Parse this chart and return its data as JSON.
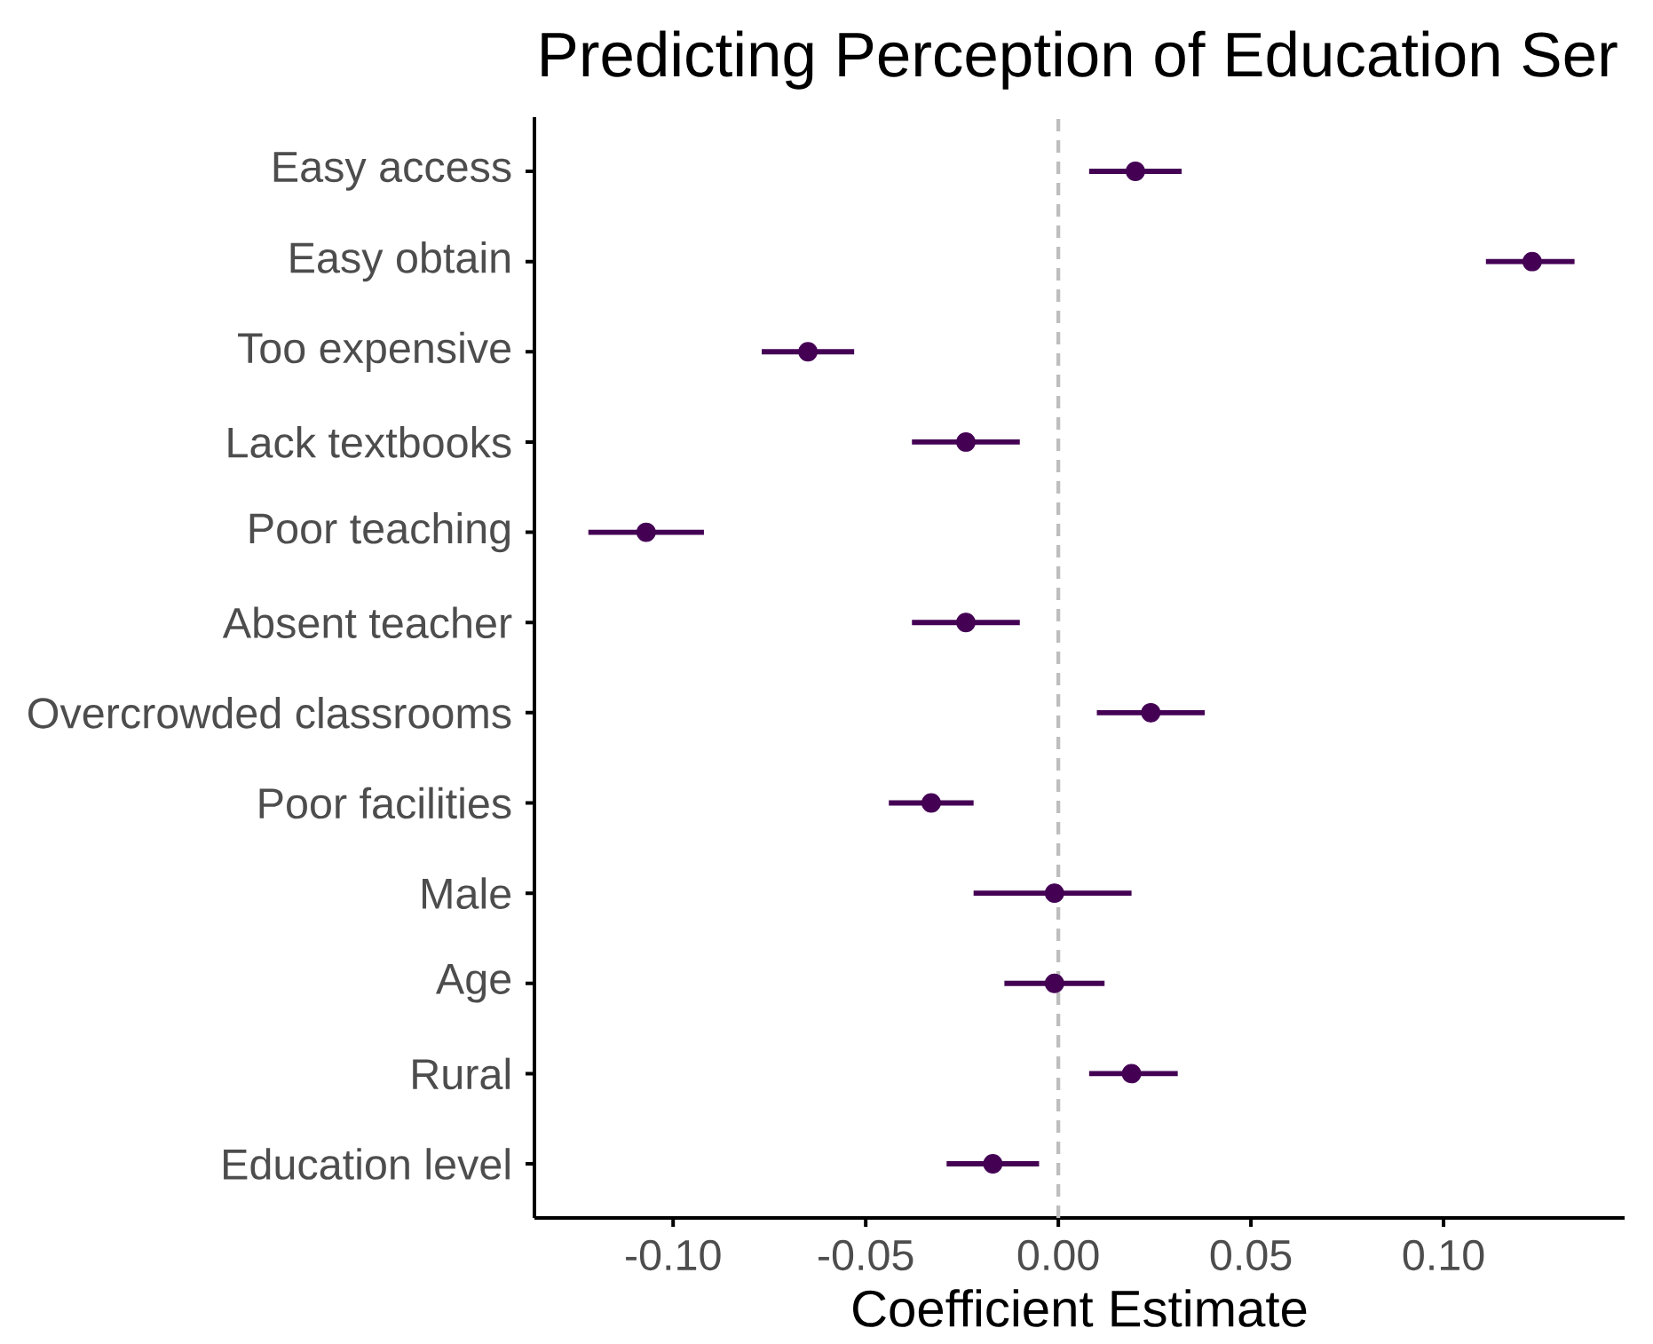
{
  "chart_data": {
    "type": "scatter",
    "orientation": "horizontal",
    "title": "Predicting Perception of Education Ser",
    "xlabel": "Coefficient Estimate",
    "categories": [
      "Easy access",
      "Easy obtain",
      "Too expensive",
      "Lack textbooks",
      "Poor teaching",
      "Absent teacher",
      "Overcrowded classrooms",
      "Poor facilities",
      "Male",
      "Age",
      "Rural",
      "Education level"
    ],
    "values": [
      0.02,
      0.123,
      -0.065,
      -0.024,
      -0.107,
      -0.024,
      0.024,
      -0.033,
      -0.001,
      -0.001,
      0.019,
      -0.017
    ],
    "errors": [
      [
        0.008,
        0.032
      ],
      [
        0.111,
        0.134
      ],
      [
        -0.077,
        -0.053
      ],
      [
        -0.038,
        -0.01
      ],
      [
        -0.122,
        -0.092
      ],
      [
        -0.038,
        -0.01
      ],
      [
        0.01,
        0.038
      ],
      [
        -0.044,
        -0.022
      ],
      [
        -0.022,
        0.019
      ],
      [
        -0.014,
        0.012
      ],
      [
        0.008,
        0.031
      ],
      [
        -0.029,
        -0.005
      ]
    ],
    "color": "#440154",
    "marker": "circle",
    "xlim": [
      -0.136,
      0.147
    ],
    "xticks": [
      {
        "value": -0.1,
        "label": "-0.10"
      },
      -0.05,
      {
        "value": 0,
        "label": "0.00"
      },
      0.05,
      {
        "value": 0.1,
        "label": "0.10"
      }
    ],
    "ref_lines": [
      {
        "axis": "x",
        "value": 0,
        "color": "#bebebe",
        "line_style": "dashed"
      }
    ]
  }
}
